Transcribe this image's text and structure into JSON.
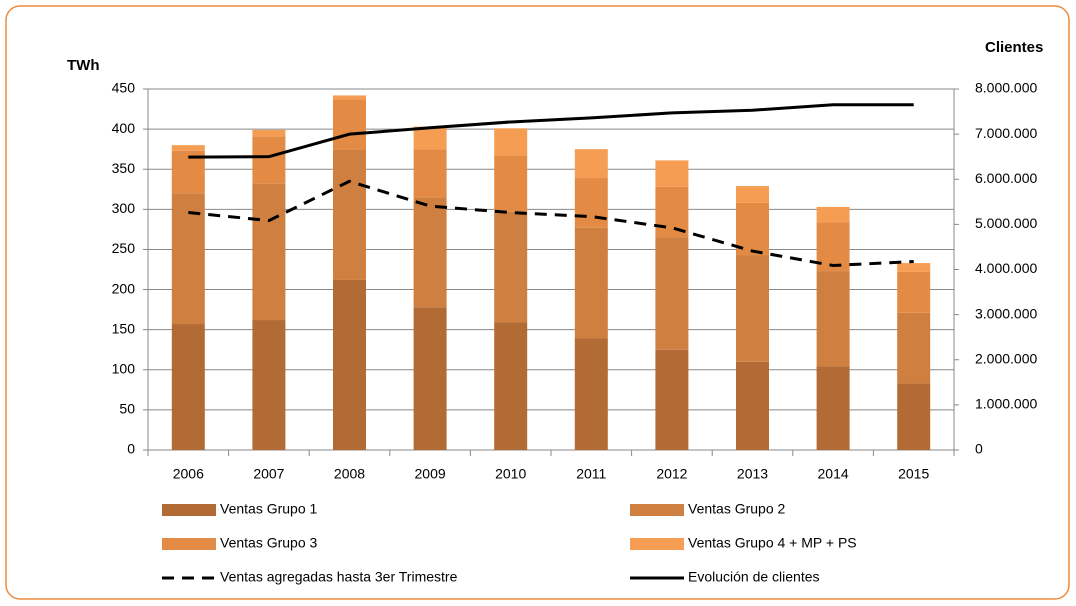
{
  "chart_data": {
    "type": "bar",
    "stacked": true,
    "ylabel": "TWh",
    "y2label": "Clientes",
    "categories": [
      "2006",
      "2007",
      "2008",
      "2009",
      "2010",
      "2011",
      "2012",
      "2013",
      "2014",
      "2015"
    ],
    "series": [
      {
        "name": "Ventas Grupo 1",
        "color": "#b26b34",
        "values": [
          157,
          162,
          212,
          178,
          159,
          139,
          125,
          110,
          104,
          83
        ]
      },
      {
        "name": "Ventas Grupo 2",
        "color": "#cf7f3f",
        "values": [
          163,
          170,
          162,
          137,
          138,
          138,
          140,
          133,
          119,
          88
        ]
      },
      {
        "name": "Ventas Grupo 3",
        "color": "#e38b45",
        "values": [
          53,
          59,
          63,
          60,
          70,
          62,
          63,
          65,
          61,
          51
        ]
      },
      {
        "name": "Ventas Grupo 4 + MP + PS",
        "color": "#f59d52",
        "values": [
          7,
          8,
          5,
          28,
          34,
          36,
          33,
          21,
          19,
          11
        ]
      },
      {
        "name": "Ventas agregadas hasta 3er Trimestre",
        "type": "line",
        "style": "dashed",
        "color": "#000000",
        "values": [
          296,
          286,
          335,
          304,
          296,
          291,
          277,
          248,
          230,
          235
        ]
      },
      {
        "name": "Evolución de clientes",
        "type": "line",
        "style": "solid",
        "axis": "y2",
        "color": "#000000",
        "values": [
          6490000,
          6500000,
          7000000,
          7140000,
          7270000,
          7360000,
          7470000,
          7530000,
          7650000,
          7650000
        ]
      }
    ],
    "ylim": [
      0,
      450
    ],
    "yticks": [
      0,
      50,
      100,
      150,
      200,
      250,
      300,
      350,
      400,
      450
    ],
    "y2lim": [
      0,
      8000000
    ],
    "y2ticks": [
      0,
      {
        "value": 1000000,
        "label": "1.000.000"
      },
      {
        "value": 2000000,
        "label": "2.000.000"
      },
      {
        "value": 3000000,
        "label": "3.000.000"
      },
      {
        "value": 4000000,
        "label": "4.000.000"
      },
      {
        "value": 5000000,
        "label": "5.000.000"
      },
      {
        "value": 6000000,
        "label": "6.000.000"
      },
      {
        "value": 7000000,
        "label": "7.000.000"
      },
      {
        "value": 8000000,
        "label": "8.000.000"
      }
    ],
    "grid": true
  }
}
